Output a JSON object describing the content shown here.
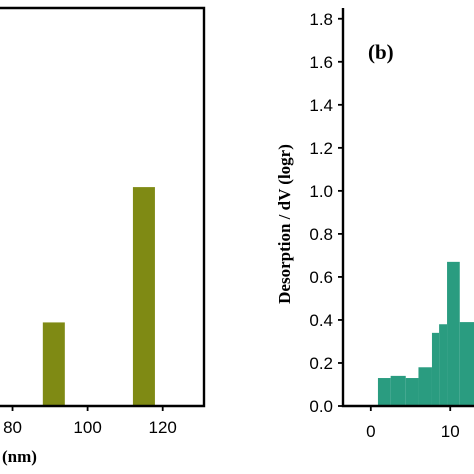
{
  "chart_data": [
    {
      "type": "bar",
      "xlabel_visible": "(nm)",
      "x_ticks": [
        "80",
        "100",
        "120"
      ],
      "x_visible_range": [
        74,
        131
      ],
      "bar_color": "#7f8a14",
      "bars": [
        {
          "x": 91,
          "value": 0.21
        },
        {
          "x": 115,
          "value": 0.55
        }
      ],
      "ylim": [
        0,
        1.0
      ]
    },
    {
      "type": "bar",
      "panel_label": "(b)",
      "ylabel": "Desorption / dV (logr)",
      "y_ticks": [
        "0.0",
        "0.2",
        "0.4",
        "0.6",
        "0.8",
        "1.0",
        "1.2",
        "1.4",
        "1.6",
        "1.8"
      ],
      "ylim": [
        0,
        1.85
      ],
      "x_ticks": [
        "0",
        "10"
      ],
      "x_visible_range": [
        -3.5,
        14
      ],
      "bar_color": "#2a9c80",
      "bars": [
        {
          "x0": 0.9,
          "x1": 2.5,
          "value": 0.13
        },
        {
          "x0": 2.5,
          "x1": 4.4,
          "value": 0.14
        },
        {
          "x0": 4.4,
          "x1": 6.0,
          "value": 0.13
        },
        {
          "x0": 6.0,
          "x1": 7.7,
          "value": 0.18
        },
        {
          "x0": 7.7,
          "x1": 8.6,
          "value": 0.34
        },
        {
          "x0": 8.6,
          "x1": 9.6,
          "value": 0.38
        },
        {
          "x0": 9.6,
          "x1": 11.2,
          "value": 0.67
        },
        {
          "x0": 11.2,
          "x1": 14.0,
          "value": 0.39
        }
      ]
    }
  ]
}
